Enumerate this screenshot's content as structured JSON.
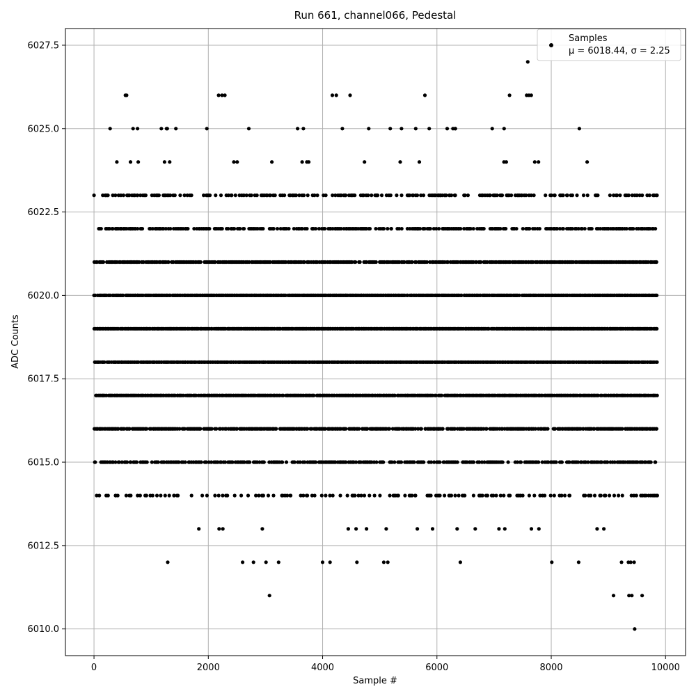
{
  "chart_data": {
    "type": "scatter",
    "title": "Run 661, channel066, Pedestal",
    "xlabel": "Sample #",
    "ylabel": "ADC Counts",
    "xlim": [
      -500,
      10350
    ],
    "ylim": [
      6009.2,
      6028.0
    ],
    "xticks": [
      0,
      2000,
      4000,
      6000,
      8000,
      10000
    ],
    "xtick_labels": [
      "0",
      "2000",
      "4000",
      "6000",
      "8000",
      "10000"
    ],
    "yticks": [
      6010.0,
      6012.5,
      6015.0,
      6017.5,
      6020.0,
      6022.5,
      6025.0,
      6027.5
    ],
    "ytick_labels": [
      "6010.0",
      "6012.5",
      "6015.0",
      "6017.5",
      "6020.0",
      "6022.5",
      "6025.0",
      "6027.5"
    ],
    "grid": true,
    "legend_position": "top-right",
    "marker_color": "#000000",
    "series": [
      {
        "name": "Samples",
        "stats_label": "μ = 6018.44, σ = 2.25",
        "mean": 6018.44,
        "sigma": 2.25,
        "n_samples": 9840,
        "x_range": [
          0,
          9840
        ],
        "y_values_observed": [
          6010,
          6011,
          6012,
          6013,
          6014,
          6015,
          6016,
          6017,
          6018,
          6019,
          6020,
          6021,
          6022,
          6023,
          6024,
          6025,
          6026,
          6027
        ],
        "outliers": [
          {
            "x": 9460,
            "y": 6010
          },
          {
            "x": 3070,
            "y": 6011
          },
          {
            "x": 9090,
            "y": 6011
          },
          {
            "x": 9360,
            "y": 6011
          },
          {
            "x": 9410,
            "y": 6011
          },
          {
            "x": 9590,
            "y": 6011
          },
          {
            "x": 1290,
            "y": 6012
          },
          {
            "x": 2600,
            "y": 6012
          },
          {
            "x": 2790,
            "y": 6012
          },
          {
            "x": 3010,
            "y": 6012
          },
          {
            "x": 3230,
            "y": 6012
          },
          {
            "x": 4000,
            "y": 6012
          },
          {
            "x": 4130,
            "y": 6012
          },
          {
            "x": 4600,
            "y": 6012
          },
          {
            "x": 5070,
            "y": 6012
          },
          {
            "x": 5140,
            "y": 6012
          },
          {
            "x": 6410,
            "y": 6012
          },
          {
            "x": 8010,
            "y": 6012
          },
          {
            "x": 8480,
            "y": 6012
          },
          {
            "x": 9230,
            "y": 6012
          },
          {
            "x": 9350,
            "y": 6012
          },
          {
            "x": 9390,
            "y": 6012
          },
          {
            "x": 9450,
            "y": 6012
          },
          {
            "x": 550,
            "y": 6026
          },
          {
            "x": 570,
            "y": 6026
          },
          {
            "x": 2180,
            "y": 6026
          },
          {
            "x": 2240,
            "y": 6026
          },
          {
            "x": 2290,
            "y": 6026
          },
          {
            "x": 4170,
            "y": 6026
          },
          {
            "x": 4240,
            "y": 6026
          },
          {
            "x": 4480,
            "y": 6026
          },
          {
            "x": 5790,
            "y": 6026
          },
          {
            "x": 7270,
            "y": 6026
          },
          {
            "x": 7570,
            "y": 6026
          },
          {
            "x": 7610,
            "y": 6026
          },
          {
            "x": 7650,
            "y": 6026
          },
          {
            "x": 7590,
            "y": 6027
          }
        ]
      }
    ]
  }
}
